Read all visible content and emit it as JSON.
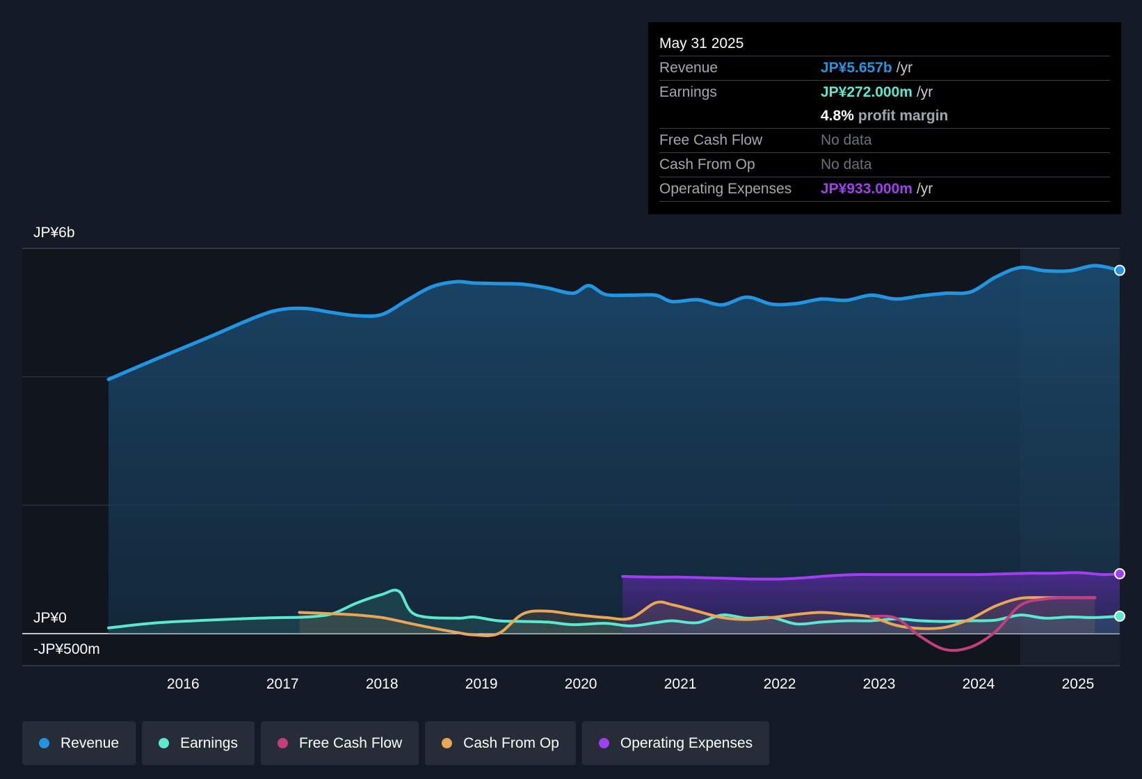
{
  "colors": {
    "revenue": "#2394df",
    "earnings": "#5ce8d0",
    "free_cash_flow": "#c13f7c",
    "cash_from_op": "#e8a756",
    "operating_expenses": "#a03ff0"
  },
  "tooltip": {
    "date": "May 31 2025",
    "revenue_label": "Revenue",
    "revenue_value": "JP¥5.657b",
    "revenue_unit": "/yr",
    "earnings_label": "Earnings",
    "earnings_value": "JP¥272.000m",
    "earnings_unit": "/yr",
    "margin_value": "4.8%",
    "margin_label": "profit margin",
    "fcf_label": "Free Cash Flow",
    "fcf_value": "No data",
    "cfo_label": "Cash From Op",
    "cfo_value": "No data",
    "opex_label": "Operating Expenses",
    "opex_value": "JP¥933.000m",
    "opex_unit": "/yr"
  },
  "legend": [
    {
      "key": "revenue",
      "label": "Revenue"
    },
    {
      "key": "earnings",
      "label": "Earnings"
    },
    {
      "key": "free_cash_flow",
      "label": "Free Cash Flow"
    },
    {
      "key": "cash_from_op",
      "label": "Cash From Op"
    },
    {
      "key": "operating_expenses",
      "label": "Operating Expenses"
    }
  ],
  "chart_data": {
    "type": "area",
    "title": "",
    "xlabel": "",
    "ylabel": "",
    "ylim": [
      -500,
      6000
    ],
    "xlim": [
      2014.83,
      2025.42
    ],
    "y_tick_labels": [
      {
        "value": 6000,
        "label": "JP¥6b"
      },
      {
        "value": 0,
        "label": "JP¥0"
      },
      {
        "value": -500,
        "label": "-JP¥500m"
      }
    ],
    "x_ticks": [
      2016,
      2017,
      2018,
      2019,
      2020,
      2021,
      2022,
      2023,
      2024,
      2025
    ],
    "x_tick_labels": [
      "2016",
      "2017",
      "2018",
      "2019",
      "2020",
      "2021",
      "2022",
      "2023",
      "2024",
      "2025"
    ],
    "gridlines_y": [
      6000,
      4000,
      2000
    ],
    "forecast_region_start": 2024.42,
    "series": [
      {
        "name": "Revenue",
        "key": "revenue",
        "fill": true,
        "x": [
          2015.25,
          2015.75,
          2016.25,
          2016.75,
          2017.0,
          2017.25,
          2017.5,
          2017.75,
          2018.0,
          2018.25,
          2018.5,
          2018.75,
          2018.92,
          2019.17,
          2019.42,
          2019.67,
          2019.92,
          2020.08,
          2020.25,
          2020.5,
          2020.75,
          2020.92,
          2021.17,
          2021.42,
          2021.67,
          2021.92,
          2022.17,
          2022.42,
          2022.67,
          2022.92,
          2023.17,
          2023.42,
          2023.67,
          2023.92,
          2024.17,
          2024.42,
          2024.67,
          2024.92,
          2025.17,
          2025.42
        ],
        "y": [
          3960,
          4290,
          4610,
          4940,
          5050,
          5060,
          5000,
          4950,
          4970,
          5190,
          5400,
          5480,
          5460,
          5450,
          5440,
          5380,
          5300,
          5420,
          5280,
          5270,
          5270,
          5170,
          5200,
          5120,
          5240,
          5130,
          5140,
          5210,
          5190,
          5270,
          5210,
          5260,
          5300,
          5320,
          5550,
          5700,
          5650,
          5650,
          5730,
          5657
        ]
      },
      {
        "name": "Earnings",
        "key": "earnings",
        "fill": false,
        "x": [
          2015.25,
          2015.75,
          2016.25,
          2016.75,
          2017.0,
          2017.25,
          2017.5,
          2017.75,
          2018.0,
          2018.17,
          2018.33,
          2018.75,
          2018.92,
          2019.17,
          2019.42,
          2019.67,
          2019.92,
          2020.25,
          2020.5,
          2020.75,
          2020.92,
          2021.17,
          2021.42,
          2021.67,
          2021.92,
          2022.17,
          2022.42,
          2022.67,
          2022.92,
          2023.17,
          2023.42,
          2023.67,
          2023.92,
          2024.17,
          2024.42,
          2024.67,
          2024.92,
          2025.17,
          2025.42
        ],
        "y": [
          90,
          170,
          210,
          240,
          250,
          260,
          310,
          480,
          610,
          660,
          300,
          240,
          260,
          200,
          190,
          180,
          140,
          160,
          120,
          170,
          200,
          170,
          290,
          240,
          250,
          150,
          180,
          200,
          200,
          230,
          200,
          190,
          200,
          210,
          290,
          240,
          260,
          250,
          272
        ]
      },
      {
        "name": "Free Cash Flow",
        "key": "free_cash_flow",
        "fill": false,
        "x": [
          2022.92,
          2023.17,
          2023.42,
          2023.67,
          2023.92,
          2024.17,
          2024.42,
          2024.67,
          2024.92,
          2025.17
        ],
        "y": [
          270,
          240,
          -50,
          -250,
          -210,
          30,
          440,
          540,
          560,
          560
        ]
      },
      {
        "name": "Cash From Op",
        "key": "cash_from_op",
        "fill": false,
        "x": [
          2017.17,
          2017.5,
          2017.75,
          2018.0,
          2018.25,
          2018.5,
          2018.75,
          2018.92,
          2019.17,
          2019.42,
          2019.67,
          2019.92,
          2020.25,
          2020.5,
          2020.75,
          2020.92,
          2021.17,
          2021.42,
          2021.67,
          2021.92,
          2022.17,
          2022.42,
          2022.67,
          2022.92,
          2023.17,
          2023.42,
          2023.67,
          2023.92,
          2024.17,
          2024.42,
          2024.67,
          2024.92,
          2025.17
        ],
        "y": [
          330,
          310,
          290,
          250,
          170,
          90,
          20,
          -20,
          0,
          310,
          350,
          300,
          250,
          240,
          480,
          450,
          350,
          250,
          220,
          250,
          300,
          330,
          300,
          260,
          130,
          80,
          100,
          230,
          430,
          550,
          560,
          560,
          560
        ]
      },
      {
        "name": "Operating Expenses",
        "key": "operating_expenses",
        "fill": true,
        "x": [
          2020.42,
          2020.75,
          2021.0,
          2021.25,
          2021.5,
          2021.75,
          2022.0,
          2022.25,
          2022.5,
          2022.75,
          2023.0,
          2023.25,
          2023.5,
          2023.75,
          2024.0,
          2024.25,
          2024.5,
          2024.75,
          2025.0,
          2025.25,
          2025.42
        ],
        "y": [
          890,
          880,
          880,
          870,
          860,
          850,
          850,
          870,
          900,
          920,
          920,
          920,
          920,
          920,
          920,
          930,
          940,
          940,
          950,
          920,
          933
        ]
      }
    ]
  }
}
